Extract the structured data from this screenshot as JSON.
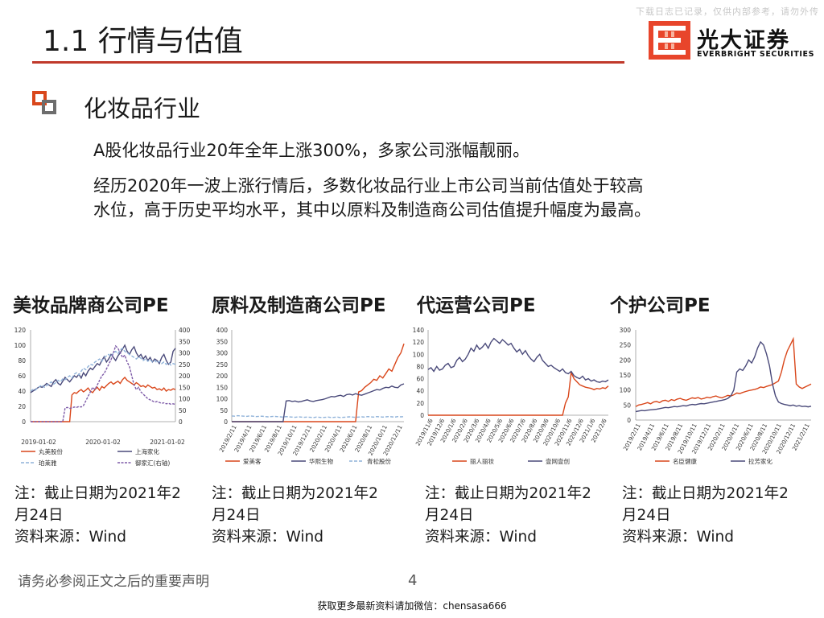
{
  "watermark": "下载日志已记录，仅供内部参考，请勿外传",
  "header": {
    "title": "1.1 行情与估值",
    "logo_cn": "光大证券",
    "logo_en": "EVERBRIGHT SECURITIES",
    "accent": "#c0392b"
  },
  "section": {
    "heading": "化妆品行业",
    "para1": "A股化妆品行业20年全年上涨300%，多家公司涨幅靓丽。",
    "para2_line1": "经历2020年一波上涨行情后，多数化妆品行业上市公司当前估值处于较高",
    "para2_line2": "水位，高于历史平均水平，其中以原料及制造商公司估值提升幅度为最高。"
  },
  "charts": [
    {
      "title": "美妆品牌商公司PE",
      "note_line1": "注：截止日期为2021年2",
      "note_line2": "月24日",
      "note_line3": "资料来源：Wind",
      "y_ticks": [
        "120",
        "100",
        "80",
        "60",
        "40",
        "20",
        "0"
      ],
      "y2_ticks": [
        "400",
        "350",
        "300",
        "250",
        "200",
        "150",
        "100",
        "50",
        "0"
      ],
      "x_ticks": [
        "2019-01-02",
        "2020-01-02",
        "2021-01-02"
      ],
      "legend": [
        "丸美股份",
        "上海家化",
        "珀莱雅",
        "御家汇(右轴)"
      ]
    },
    {
      "title": "原料及制造商公司PE",
      "note_line1": "注：截止日期为2021年2",
      "note_line2": "月24日",
      "note_line3": "资料来源：Wind",
      "y_ticks": [
        "400",
        "350",
        "300",
        "250",
        "200",
        "150",
        "100",
        "50",
        "0"
      ],
      "x_ticks": [
        "2019/2/11",
        "2019/4/11",
        "2019/6/11",
        "2019/8/11",
        "2019/10/11",
        "2019/12/11",
        "2020/2/11",
        "2020/4/11",
        "2020/6/11",
        "2020/8/11",
        "2020/10/11",
        "2020/12/11"
      ],
      "legend": [
        "爱美客",
        "华熙生物",
        "青松股份"
      ]
    },
    {
      "title": "代运营公司PE",
      "note_line1": "注：截止日期为2021年2",
      "note_line2": "月24日",
      "note_line3": "资料来源：Wind",
      "y_ticks": [
        "140",
        "120",
        "100",
        "80",
        "60",
        "40",
        "20",
        "0"
      ],
      "x_ticks": [
        "2019/11/6",
        "2019/12/6",
        "2020/1/6",
        "2020/2/6",
        "2020/3/6",
        "2020/4/6",
        "2020/5/6",
        "2020/6/6",
        "2020/7/6",
        "2020/8/6",
        "2020/9/6",
        "2020/10/6",
        "2020/11/6",
        "2020/12/6",
        "2021/1/6",
        "2021/2/6"
      ],
      "legend": [
        "丽人丽妆",
        "壹网壹创"
      ]
    },
    {
      "title": "个护公司PE",
      "note_line1": "注：截止日期为2021年2",
      "note_line2": "月24日",
      "note_line3": "资料来源：Wind",
      "y_ticks": [
        "300",
        "250",
        "200",
        "150",
        "100",
        "50",
        "0"
      ],
      "x_ticks": [
        "2019/2/11",
        "2019/4/11",
        "2019/6/11",
        "2019/8/11",
        "2019/10/11",
        "2019/12/11",
        "2020/2/11",
        "2020/4/11",
        "2020/6/11",
        "2020/8/11",
        "2020/10/11",
        "2020/12/11",
        "2021/2/11"
      ],
      "legend": [
        "名臣健康",
        "拉芳家化"
      ]
    }
  ],
  "chart_data": [
    {
      "type": "line",
      "title": "美妆品牌商公司PE",
      "x_range": [
        "2019-01-02",
        "2021-02-24"
      ],
      "ylim": [
        0,
        120
      ],
      "y2lim": [
        0,
        400
      ],
      "series": [
        {
          "name": "丸美股份",
          "axis": "left",
          "color": "#d9471b",
          "values": [
            0,
            0,
            0,
            0,
            0,
            0,
            0,
            0,
            0,
            0,
            0,
            0,
            0,
            0,
            0,
            0,
            0,
            0,
            35,
            38,
            37,
            40,
            42,
            39,
            41,
            44,
            40,
            38,
            42,
            45,
            41,
            46,
            44,
            47,
            50,
            52,
            49,
            51,
            53,
            50,
            55,
            58,
            54,
            52,
            50,
            48,
            51,
            49,
            46,
            47,
            45,
            48,
            46,
            44,
            45,
            42,
            43,
            41,
            44,
            40,
            42,
            41,
            43,
            42
          ]
        },
        {
          "name": "上海家化",
          "axis": "left",
          "color": "#4a4a7a",
          "values": [
            38,
            40,
            42,
            44,
            46,
            45,
            47,
            50,
            48,
            46,
            52,
            55,
            50,
            48,
            53,
            58,
            55,
            52,
            56,
            60,
            58,
            62,
            57,
            64,
            60,
            66,
            70,
            68,
            72,
            76,
            74,
            80,
            85,
            78,
            82,
            88,
            84,
            80,
            86,
            90,
            95,
            100,
            92,
            88,
            94,
            98,
            90,
            85,
            88,
            82,
            86,
            80,
            84,
            78,
            82,
            80,
            76,
            84,
            88,
            80,
            75,
            78,
            92,
            96
          ]
        },
        {
          "name": "珀莱雅",
          "axis": "left",
          "color": "#8fb2d9",
          "values": [
            40,
            42,
            41,
            44,
            46,
            48,
            45,
            47,
            50,
            52,
            49,
            51,
            54,
            52,
            56,
            55,
            58,
            60,
            57,
            62,
            64,
            61,
            66,
            70,
            68,
            72,
            75,
            74,
            78,
            80,
            82,
            79,
            84,
            86,
            88,
            85,
            90,
            92,
            89,
            94,
            96,
            92,
            90,
            88,
            86,
            84,
            82,
            85,
            83,
            80,
            82,
            79,
            81,
            78,
            80,
            77,
            79,
            76,
            78,
            75,
            77,
            74,
            76,
            75
          ]
        },
        {
          "name": "御家汇(右轴)",
          "axis": "right",
          "color": "#7e5ba8",
          "values": [
            0,
            0,
            0,
            0,
            0,
            0,
            0,
            0,
            0,
            0,
            0,
            0,
            0,
            0,
            0,
            60,
            62,
            58,
            60,
            64,
            62,
            66,
            64,
            70,
            90,
            110,
            130,
            150,
            140,
            160,
            180,
            200,
            210,
            230,
            250,
            270,
            300,
            330,
            320,
            300,
            280,
            290,
            260,
            240,
            200,
            160,
            140,
            150,
            130,
            120,
            110,
            100,
            95,
            90,
            85,
            88,
            84,
            80,
            82,
            78,
            80,
            76,
            78,
            75
          ]
        }
      ]
    },
    {
      "type": "line",
      "title": "原料及制造商公司PE",
      "x_range": [
        "2019/2/11",
        "2021/2/24"
      ],
      "ylim": [
        0,
        400
      ],
      "series": [
        {
          "name": "爱美客",
          "color": "#d9471b",
          "values": [
            0,
            0,
            0,
            0,
            0,
            0,
            0,
            0,
            0,
            0,
            0,
            0,
            0,
            0,
            0,
            0,
            0,
            0,
            0,
            0,
            0,
            0,
            0,
            0,
            0,
            0,
            0,
            0,
            0,
            0,
            0,
            0,
            0,
            0,
            0,
            0,
            0,
            0,
            0,
            0,
            0,
            0,
            130,
            135,
            150,
            160,
            170,
            185,
            180,
            200,
            190,
            210,
            230,
            220,
            250,
            280,
            300,
            340
          ]
        },
        {
          "name": "华熙生物",
          "color": "#4a4a7a",
          "values": [
            0,
            0,
            0,
            0,
            0,
            0,
            0,
            0,
            0,
            0,
            0,
            0,
            0,
            0,
            0,
            0,
            0,
            0,
            90,
            92,
            88,
            90,
            86,
            88,
            92,
            95,
            90,
            88,
            92,
            94,
            96,
            100,
            105,
            110,
            108,
            112,
            115,
            110,
            118,
            120,
            116,
            122,
            118,
            115,
            120,
            125,
            130,
            135,
            140,
            138,
            145,
            150,
            148,
            155,
            150,
            148,
            160,
            165
          ]
        },
        {
          "name": "青松股份",
          "color": "#8fb2d9",
          "values": [
            25,
            24,
            26,
            25,
            24,
            23,
            25,
            24,
            22,
            23,
            24,
            22,
            21,
            22,
            23,
            22,
            21,
            20,
            22,
            21,
            20,
            19,
            21,
            20,
            19,
            20,
            19,
            18,
            20,
            19,
            18,
            19,
            20,
            18,
            19,
            20,
            18,
            19,
            20,
            21,
            20,
            19,
            20,
            21,
            20,
            22,
            21,
            20,
            22,
            21,
            20,
            21,
            22,
            21,
            20,
            22,
            21,
            22
          ]
        }
      ]
    },
    {
      "type": "line",
      "title": "代运营公司PE",
      "x_range": [
        "2019/11/6",
        "2021/2/24"
      ],
      "ylim": [
        0,
        140
      ],
      "series": [
        {
          "name": "丽人丽妆",
          "color": "#d9471b",
          "values": [
            0,
            0,
            0,
            0,
            0,
            0,
            0,
            0,
            0,
            0,
            0,
            0,
            0,
            0,
            0,
            0,
            0,
            0,
            0,
            0,
            0,
            0,
            0,
            0,
            0,
            0,
            0,
            0,
            0,
            0,
            0,
            0,
            0,
            0,
            0,
            0,
            0,
            0,
            0,
            0,
            0,
            0,
            0,
            0,
            0,
            0,
            0,
            0,
            20,
            30,
            70,
            60,
            55,
            50,
            48,
            46,
            45,
            44,
            42,
            44,
            43,
            45,
            44,
            48
          ]
        },
        {
          "name": "壹网壹创",
          "color": "#4a4a7a",
          "values": [
            75,
            78,
            72,
            80,
            74,
            76,
            82,
            85,
            78,
            80,
            90,
            95,
            88,
            92,
            100,
            110,
            105,
            115,
            108,
            112,
            118,
            110,
            120,
            126,
            122,
            118,
            124,
            120,
            115,
            118,
            110,
            104,
            108,
            100,
            106,
            98,
            92,
            88,
            95,
            100,
            90,
            85,
            80,
            82,
            78,
            75,
            72,
            76,
            70,
            68,
            72,
            65,
            62,
            60,
            64,
            58,
            60,
            56,
            58,
            55,
            54,
            56,
            55,
            58
          ]
        }
      ]
    },
    {
      "type": "line",
      "title": "个护公司PE",
      "x_range": [
        "2019/2/11",
        "2021/2/24"
      ],
      "ylim": [
        0,
        300
      ],
      "series": [
        {
          "name": "名臣健康",
          "color": "#d9471b",
          "values": [
            45,
            50,
            52,
            55,
            58,
            54,
            60,
            62,
            58,
            64,
            66,
            62,
            68,
            65,
            70,
            72,
            68,
            66,
            70,
            74,
            72,
            75,
            70,
            72,
            76,
            74,
            78,
            80,
            76,
            74,
            78,
            82,
            80,
            84,
            90,
            88,
            92,
            95,
            98,
            100,
            102,
            105,
            110,
            108,
            112,
            115,
            118,
            124,
            130,
            160,
            200,
            230,
            250,
            270,
            120,
            110,
            105,
            110,
            115,
            120
          ]
        },
        {
          "name": "拉芳家化",
          "color": "#4a4a7a",
          "values": [
            28,
            30,
            32,
            31,
            33,
            34,
            35,
            36,
            38,
            40,
            42,
            41,
            43,
            45,
            44,
            46,
            48,
            47,
            50,
            52,
            51,
            53,
            55,
            54,
            56,
            58,
            60,
            62,
            64,
            66,
            68,
            72,
            80,
            100,
            160,
            170,
            165,
            180,
            200,
            190,
            210,
            240,
            260,
            250,
            220,
            180,
            120,
            80,
            60,
            55,
            52,
            50,
            48,
            50,
            46,
            48,
            45,
            46,
            44,
            46
          ]
        }
      ]
    }
  ],
  "footer": {
    "disclaimer": "请务必参阅正文之后的重要声明",
    "page": "4",
    "bottom_note": "获取更多最新资料请加微信：chensasa666"
  }
}
